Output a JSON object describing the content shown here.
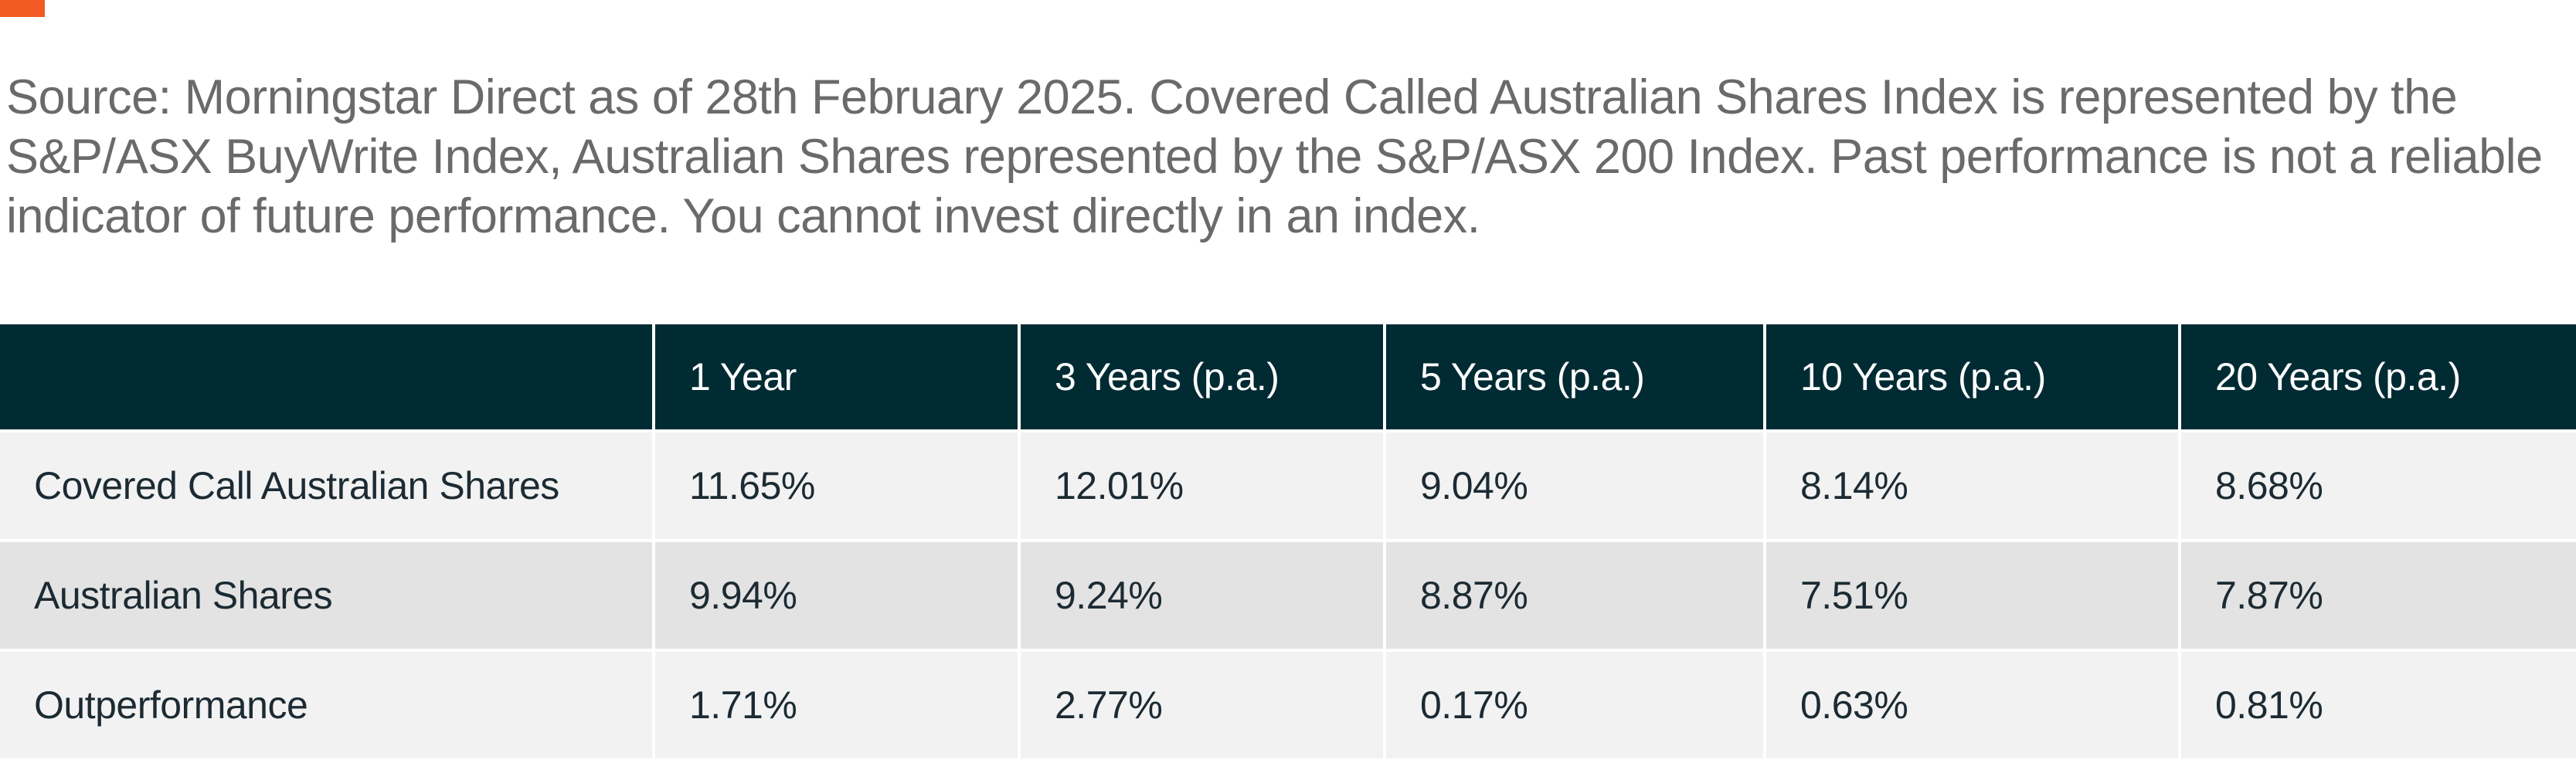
{
  "colors": {
    "accent": "#f15a22",
    "header_bg": "#002b33",
    "row_light": "#f2f2f2",
    "row_dark": "#e3e3e3",
    "source_text": "#6a6a6a"
  },
  "source_note": "Source: Morningstar Direct as of 28th February 2025. Covered Called Australian Shares Index is represented by the S&P/ASX BuyWrite Index, Australian Shares represented by the S&P/ASX 200 Index. Past performance is not a reliable indicator of future performance. You cannot invest directly in an index.",
  "table": {
    "columns": [
      "",
      "1 Year",
      "3 Years (p.a.)",
      "5 Years (p.a.)",
      "10 Years (p.a.)",
      "20 Years (p.a.)"
    ],
    "rows": [
      {
        "label": "Covered Call Australian Shares",
        "values": [
          "11.65%",
          "12.01%",
          "9.04%",
          "8.14%",
          "8.68%"
        ]
      },
      {
        "label": "Australian Shares",
        "values": [
          "9.94%",
          "9.24%",
          "8.87%",
          "7.51%",
          "7.87%"
        ]
      },
      {
        "label": "Outperformance",
        "values": [
          "1.71%",
          "2.77%",
          "0.17%",
          "0.63%",
          "0.81%"
        ]
      }
    ]
  }
}
